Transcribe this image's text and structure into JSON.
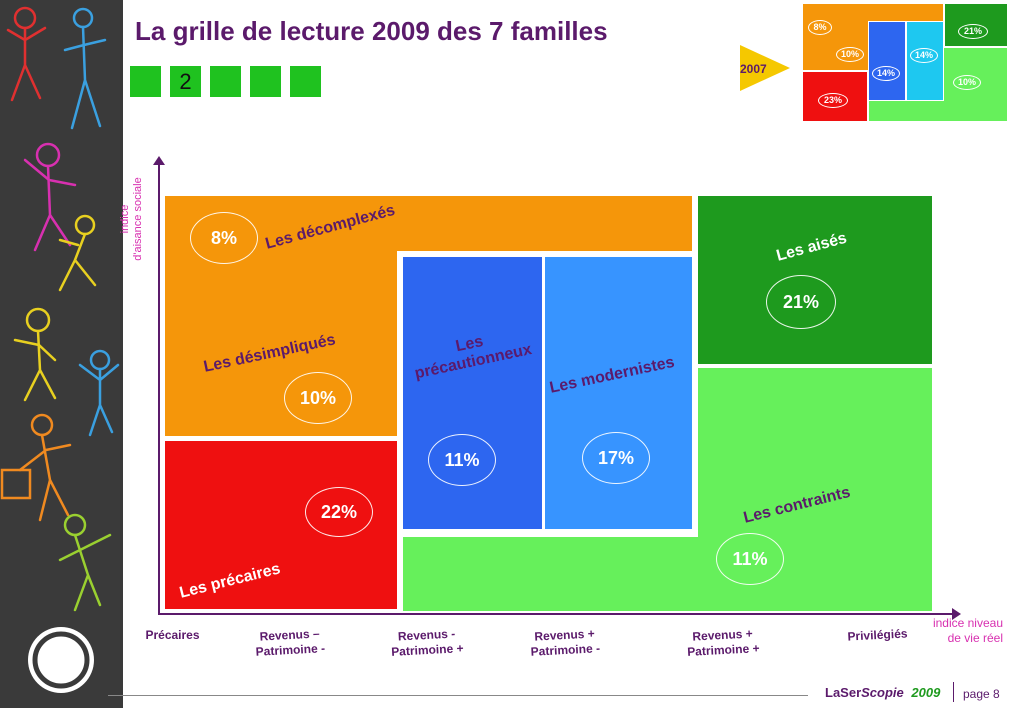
{
  "title": "La grille de lecture 2009 des 7 familles",
  "sequence_number": "2",
  "year_2007": "2007",
  "axes": {
    "y_label_line1": "indice",
    "y_label_line2": "d'aisance sociale",
    "x_label_line1": "indice niveau",
    "x_label_line2": "de vie réel",
    "x_categories": [
      {
        "line1": "Précaires",
        "line2": ""
      },
      {
        "line1": "Revenus –",
        "line2": "Patrimoine -"
      },
      {
        "line1": "Revenus -",
        "line2": "Patrimoine +"
      },
      {
        "line1": "Revenus +",
        "line2": "Patrimoine -"
      },
      {
        "line1": "Revenus +",
        "line2": "Patrimoine +"
      },
      {
        "line1": "Privilégiés",
        "line2": ""
      }
    ]
  },
  "families": [
    {
      "name": "Les décomplexés",
      "pct": "8%",
      "color": "#f5960a"
    },
    {
      "name": "Les désimpliqués",
      "pct": "10%",
      "color": "#f5960a"
    },
    {
      "name": "Les précaires",
      "pct": "22%",
      "color": "#ef1010"
    },
    {
      "name_line1": "Les",
      "name_line2": "précautionneux",
      "pct": "11%",
      "color": "#2d66f0"
    },
    {
      "name": "Les modernistes",
      "pct": "17%",
      "color": "#3794ff"
    },
    {
      "name": "Les aisés",
      "pct": "21%",
      "color": "#1e9a1e"
    },
    {
      "name": "Les contraints",
      "pct": "11%",
      "color": "#66f05b"
    }
  ],
  "mini_2007": {
    "pcts": [
      "8%",
      "21%",
      "10%",
      "14%",
      "14%",
      "10%",
      "23%"
    ]
  },
  "footer": {
    "brand_a": "LaSer",
    "brand_b": "Scopie",
    "year": "2009",
    "page": "page 8"
  }
}
